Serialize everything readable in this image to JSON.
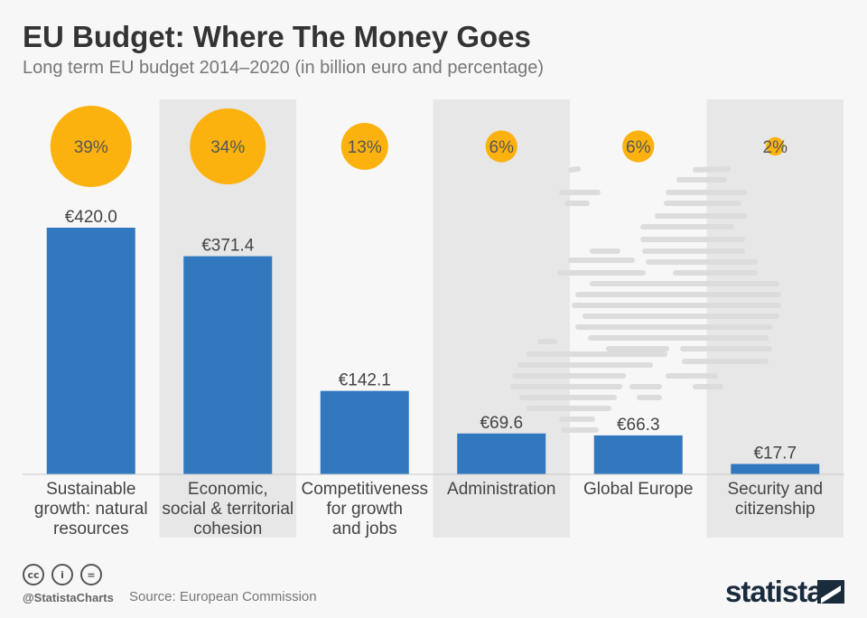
{
  "header": {
    "title": "EU Budget: Where The Money Goes",
    "subtitle": "Long term EU budget 2014–2020 (in billion euro and percentage)"
  },
  "chart_data": {
    "type": "bar",
    "categories": [
      [
        "Sustainable",
        "growth: natural",
        "resources"
      ],
      [
        "Economic,",
        "social & territorial",
        "cohesion"
      ],
      [
        "Competitiveness",
        "for growth",
        "and jobs"
      ],
      [
        "Administration"
      ],
      [
        "Global Europe"
      ],
      [
        "Security and",
        "citizenship"
      ]
    ],
    "values": [
      420.0,
      371.4,
      142.1,
      69.6,
      66.3,
      17.7
    ],
    "value_labels": [
      "€420.0",
      "€371.4",
      "€142.1",
      "€69.6",
      "€66.3",
      "€17.7"
    ],
    "percentages": [
      39,
      34,
      13,
      6,
      6,
      2
    ],
    "percentage_labels": [
      "39%",
      "34%",
      "13%",
      "6%",
      "6%",
      "2%"
    ],
    "ylim": [
      0,
      420
    ],
    "colors": {
      "bar": "#3278be",
      "bubble": "#fbb20f",
      "band": "#e7e7e7",
      "map": "#dcdcdc"
    },
    "alternate_bands": true
  },
  "footer": {
    "icons": [
      "cc-icon",
      "by-icon",
      "nd-icon"
    ],
    "icon_glyphs": [
      "cc",
      "i",
      "="
    ],
    "handle": "@StatistaCharts",
    "source": "Source: European Commission",
    "brand": "statista"
  }
}
